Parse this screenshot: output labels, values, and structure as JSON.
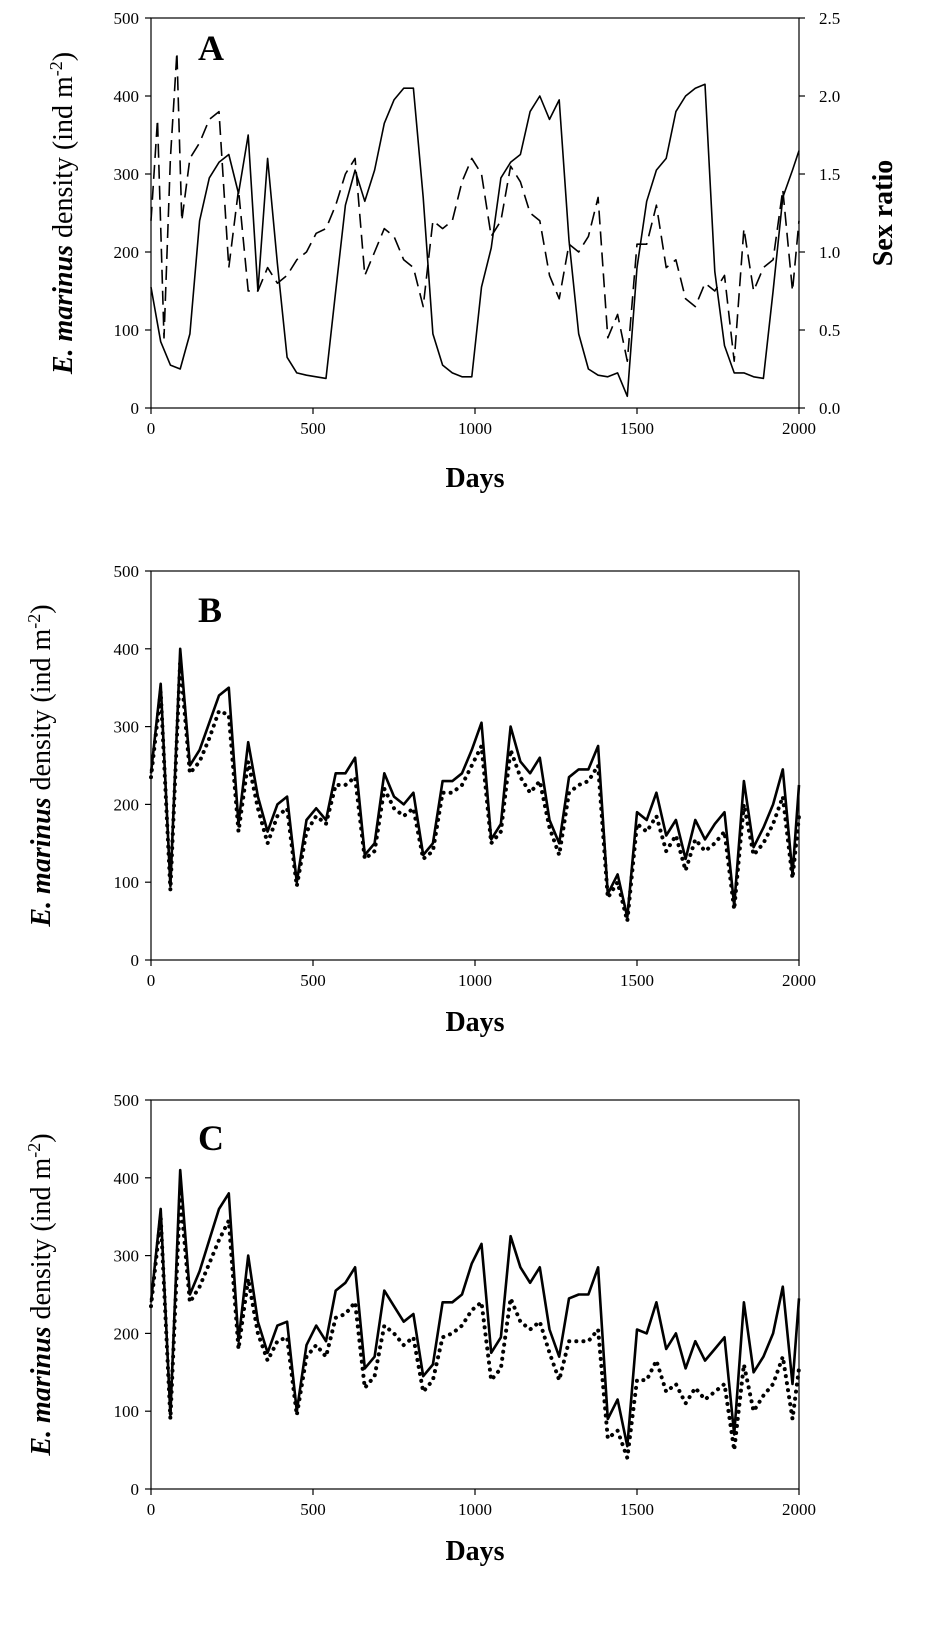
{
  "chart_data": [
    {
      "type": "line",
      "panel_label": "A",
      "xlabel": "Days",
      "ylabel": {
        "italic": "E. marinus",
        "rest": " density (ind m",
        "sup": "-2",
        "close": ")"
      },
      "ylabel_right": "Sex ratio",
      "xlim": [
        0,
        2000
      ],
      "ylim": [
        0,
        500
      ],
      "ylim_right": [
        0,
        2.5
      ],
      "xticks": [
        "0",
        "500",
        "1000",
        "1500",
        "2000"
      ],
      "yticks": [
        "0",
        "100",
        "200",
        "300",
        "400",
        "500"
      ],
      "yticks_right": [
        "0.0",
        "0.5",
        "1.0",
        "1.5",
        "2.0",
        "2.5"
      ],
      "grid": false,
      "series": [
        {
          "axis": "left",
          "style": "solid",
          "x": [
            0,
            30,
            60,
            90,
            120,
            150,
            180,
            210,
            240,
            270,
            300,
            330,
            360,
            390,
            420,
            450,
            480,
            510,
            540,
            570,
            600,
            630,
            660,
            690,
            720,
            750,
            780,
            810,
            840,
            870,
            900,
            930,
            960,
            990,
            1020,
            1050,
            1080,
            1110,
            1140,
            1170,
            1200,
            1230,
            1260,
            1290,
            1320,
            1350,
            1380,
            1410,
            1440,
            1470,
            1500,
            1530,
            1560,
            1590,
            1620,
            1650,
            1680,
            1710,
            1740,
            1770,
            1800,
            1830,
            1860,
            1890,
            1920,
            1950,
            1980,
            2000
          ],
          "y": [
            155,
            85,
            55,
            50,
            95,
            240,
            295,
            315,
            325,
            275,
            350,
            150,
            320,
            185,
            65,
            45,
            42,
            40,
            38,
            150,
            260,
            305,
            265,
            305,
            365,
            395,
            410,
            410,
            270,
            95,
            55,
            45,
            40,
            40,
            155,
            205,
            295,
            315,
            325,
            380,
            400,
            370,
            395,
            215,
            95,
            50,
            42,
            40,
            45,
            15,
            180,
            265,
            305,
            320,
            380,
            400,
            410,
            415,
            175,
            80,
            45,
            45,
            40,
            38,
            150,
            270,
            305,
            330
          ]
        },
        {
          "axis": "right",
          "style": "dashed",
          "x": [
            0,
            20,
            40,
            60,
            80,
            95,
            120,
            150,
            180,
            210,
            240,
            270,
            300,
            330,
            360,
            390,
            420,
            450,
            480,
            510,
            540,
            570,
            600,
            630,
            660,
            690,
            720,
            750,
            780,
            810,
            840,
            870,
            900,
            930,
            960,
            990,
            1020,
            1050,
            1080,
            1110,
            1140,
            1170,
            1200,
            1230,
            1260,
            1290,
            1320,
            1350,
            1380,
            1410,
            1440,
            1470,
            1500,
            1530,
            1560,
            1590,
            1620,
            1650,
            1680,
            1710,
            1740,
            1770,
            1800,
            1830,
            1860,
            1890,
            1920,
            1950,
            1980,
            2000
          ],
          "y": [
            1.2,
            1.85,
            0.45,
            1.6,
            2.28,
            1.2,
            1.6,
            1.7,
            1.85,
            1.9,
            0.9,
            1.4,
            0.75,
            0.75,
            0.9,
            0.8,
            0.85,
            0.95,
            1.0,
            1.12,
            1.15,
            1.3,
            1.5,
            1.6,
            0.85,
            1.0,
            1.15,
            1.1,
            0.95,
            0.9,
            0.65,
            1.2,
            1.15,
            1.2,
            1.45,
            1.6,
            1.5,
            1.1,
            1.2,
            1.55,
            1.45,
            1.25,
            1.2,
            0.85,
            0.7,
            1.05,
            1.0,
            1.1,
            1.35,
            0.45,
            0.6,
            0.3,
            1.05,
            1.05,
            1.3,
            0.9,
            0.95,
            0.7,
            0.65,
            0.8,
            0.75,
            0.85,
            0.3,
            1.15,
            0.75,
            0.9,
            0.95,
            1.4,
            0.75,
            1.2
          ]
        }
      ]
    },
    {
      "type": "line",
      "panel_label": "B",
      "xlabel": "Days",
      "ylabel": {
        "italic": "E. marinus",
        "rest": " density (ind m",
        "sup": "-2",
        "close": ")"
      },
      "xlim": [
        0,
        2000
      ],
      "ylim": [
        0,
        500
      ],
      "xticks": [
        "0",
        "500",
        "1000",
        "1500",
        "2000"
      ],
      "yticks": [
        "0",
        "100",
        "200",
        "300",
        "400",
        "500"
      ],
      "grid": false,
      "series": [
        {
          "style": "solid",
          "x": [
            0,
            30,
            60,
            90,
            120,
            150,
            180,
            210,
            240,
            270,
            300,
            330,
            360,
            390,
            420,
            450,
            480,
            510,
            540,
            570,
            600,
            630,
            660,
            690,
            720,
            750,
            780,
            810,
            840,
            870,
            900,
            930,
            960,
            990,
            1020,
            1050,
            1080,
            1110,
            1140,
            1170,
            1200,
            1230,
            1260,
            1290,
            1320,
            1350,
            1380,
            1410,
            1440,
            1470,
            1500,
            1530,
            1560,
            1590,
            1620,
            1650,
            1680,
            1710,
            1740,
            1770,
            1800,
            1830,
            1860,
            1890,
            1920,
            1950,
            1980,
            2000
          ],
          "y": [
            240,
            355,
            95,
            400,
            250,
            270,
            305,
            340,
            350,
            175,
            280,
            210,
            165,
            200,
            210,
            100,
            180,
            195,
            180,
            240,
            240,
            260,
            135,
            150,
            240,
            210,
            200,
            215,
            135,
            150,
            230,
            230,
            240,
            270,
            305,
            155,
            175,
            300,
            255,
            240,
            260,
            180,
            150,
            235,
            245,
            245,
            275,
            85,
            110,
            55,
            190,
            180,
            215,
            160,
            180,
            130,
            180,
            155,
            175,
            190,
            70,
            230,
            145,
            170,
            200,
            245,
            110,
            225
          ]
        },
        {
          "style": "dotted",
          "x": [
            0,
            30,
            60,
            90,
            120,
            150,
            180,
            210,
            240,
            270,
            300,
            330,
            360,
            390,
            420,
            450,
            480,
            510,
            540,
            570,
            600,
            630,
            660,
            690,
            720,
            750,
            780,
            810,
            840,
            870,
            900,
            930,
            960,
            990,
            1020,
            1050,
            1080,
            1110,
            1140,
            1170,
            1200,
            1230,
            1260,
            1290,
            1320,
            1350,
            1380,
            1410,
            1440,
            1470,
            1500,
            1530,
            1560,
            1590,
            1620,
            1650,
            1680,
            1710,
            1740,
            1770,
            1800,
            1830,
            1860,
            1890,
            1920,
            1950,
            1980,
            2000
          ],
          "y": [
            235,
            345,
            90,
            385,
            240,
            255,
            285,
            320,
            315,
            165,
            255,
            195,
            150,
            185,
            195,
            95,
            165,
            185,
            175,
            225,
            225,
            235,
            130,
            140,
            220,
            195,
            185,
            195,
            130,
            140,
            215,
            215,
            225,
            250,
            275,
            150,
            165,
            270,
            235,
            215,
            230,
            170,
            135,
            215,
            225,
            230,
            250,
            80,
            100,
            50,
            175,
            165,
            185,
            140,
            160,
            115,
            155,
            140,
            150,
            165,
            65,
            200,
            135,
            150,
            175,
            210,
            105,
            185
          ]
        }
      ]
    },
    {
      "type": "line",
      "panel_label": "C",
      "xlabel": "Days",
      "ylabel": {
        "italic": "E. marinus",
        "rest": " density (ind m",
        "sup": "-2",
        "close": ")"
      },
      "xlim": [
        0,
        2000
      ],
      "ylim": [
        0,
        500
      ],
      "xticks": [
        "0",
        "500",
        "1000",
        "1500",
        "2000"
      ],
      "yticks": [
        "0",
        "100",
        "200",
        "300",
        "400",
        "500"
      ],
      "grid": false,
      "series": [
        {
          "style": "solid",
          "x": [
            0,
            30,
            60,
            90,
            120,
            150,
            180,
            210,
            240,
            270,
            300,
            330,
            360,
            390,
            420,
            450,
            480,
            510,
            540,
            570,
            600,
            630,
            660,
            690,
            720,
            750,
            780,
            810,
            840,
            870,
            900,
            930,
            960,
            990,
            1020,
            1050,
            1080,
            1110,
            1140,
            1170,
            1200,
            1230,
            1260,
            1290,
            1320,
            1350,
            1380,
            1410,
            1440,
            1470,
            1500,
            1530,
            1560,
            1590,
            1620,
            1650,
            1680,
            1710,
            1740,
            1770,
            1800,
            1830,
            1860,
            1890,
            1920,
            1950,
            1980,
            2000
          ],
          "y": [
            240,
            360,
            95,
            410,
            250,
            280,
            320,
            360,
            380,
            190,
            300,
            215,
            175,
            210,
            215,
            100,
            185,
            210,
            190,
            255,
            265,
            285,
            155,
            170,
            255,
            235,
            215,
            225,
            145,
            160,
            240,
            240,
            250,
            290,
            315,
            175,
            195,
            325,
            285,
            265,
            285,
            205,
            170,
            245,
            250,
            250,
            285,
            90,
            115,
            55,
            205,
            200,
            240,
            180,
            200,
            155,
            190,
            165,
            180,
            195,
            70,
            240,
            150,
            170,
            200,
            260,
            135,
            245
          ]
        },
        {
          "style": "dotted",
          "x": [
            0,
            30,
            60,
            90,
            120,
            150,
            180,
            210,
            240,
            270,
            300,
            330,
            360,
            390,
            420,
            450,
            480,
            510,
            540,
            570,
            600,
            630,
            660,
            690,
            720,
            750,
            780,
            810,
            840,
            870,
            900,
            930,
            960,
            990,
            1020,
            1050,
            1080,
            1110,
            1140,
            1170,
            1200,
            1230,
            1260,
            1290,
            1320,
            1350,
            1380,
            1410,
            1440,
            1470,
            1500,
            1530,
            1560,
            1590,
            1620,
            1650,
            1680,
            1710,
            1740,
            1770,
            1800,
            1830,
            1860,
            1890,
            1920,
            1950,
            1980,
            2000
          ],
          "y": [
            235,
            350,
            90,
            380,
            240,
            260,
            290,
            320,
            345,
            180,
            270,
            200,
            165,
            190,
            195,
            95,
            170,
            185,
            170,
            220,
            225,
            240,
            130,
            145,
            210,
            200,
            185,
            195,
            125,
            140,
            195,
            200,
            210,
            230,
            240,
            140,
            155,
            245,
            215,
            205,
            215,
            175,
            140,
            190,
            190,
            190,
            205,
            65,
            75,
            40,
            140,
            140,
            165,
            125,
            135,
            110,
            130,
            115,
            125,
            135,
            50,
            160,
            100,
            120,
            135,
            170,
            90,
            155
          ]
        }
      ]
    }
  ]
}
